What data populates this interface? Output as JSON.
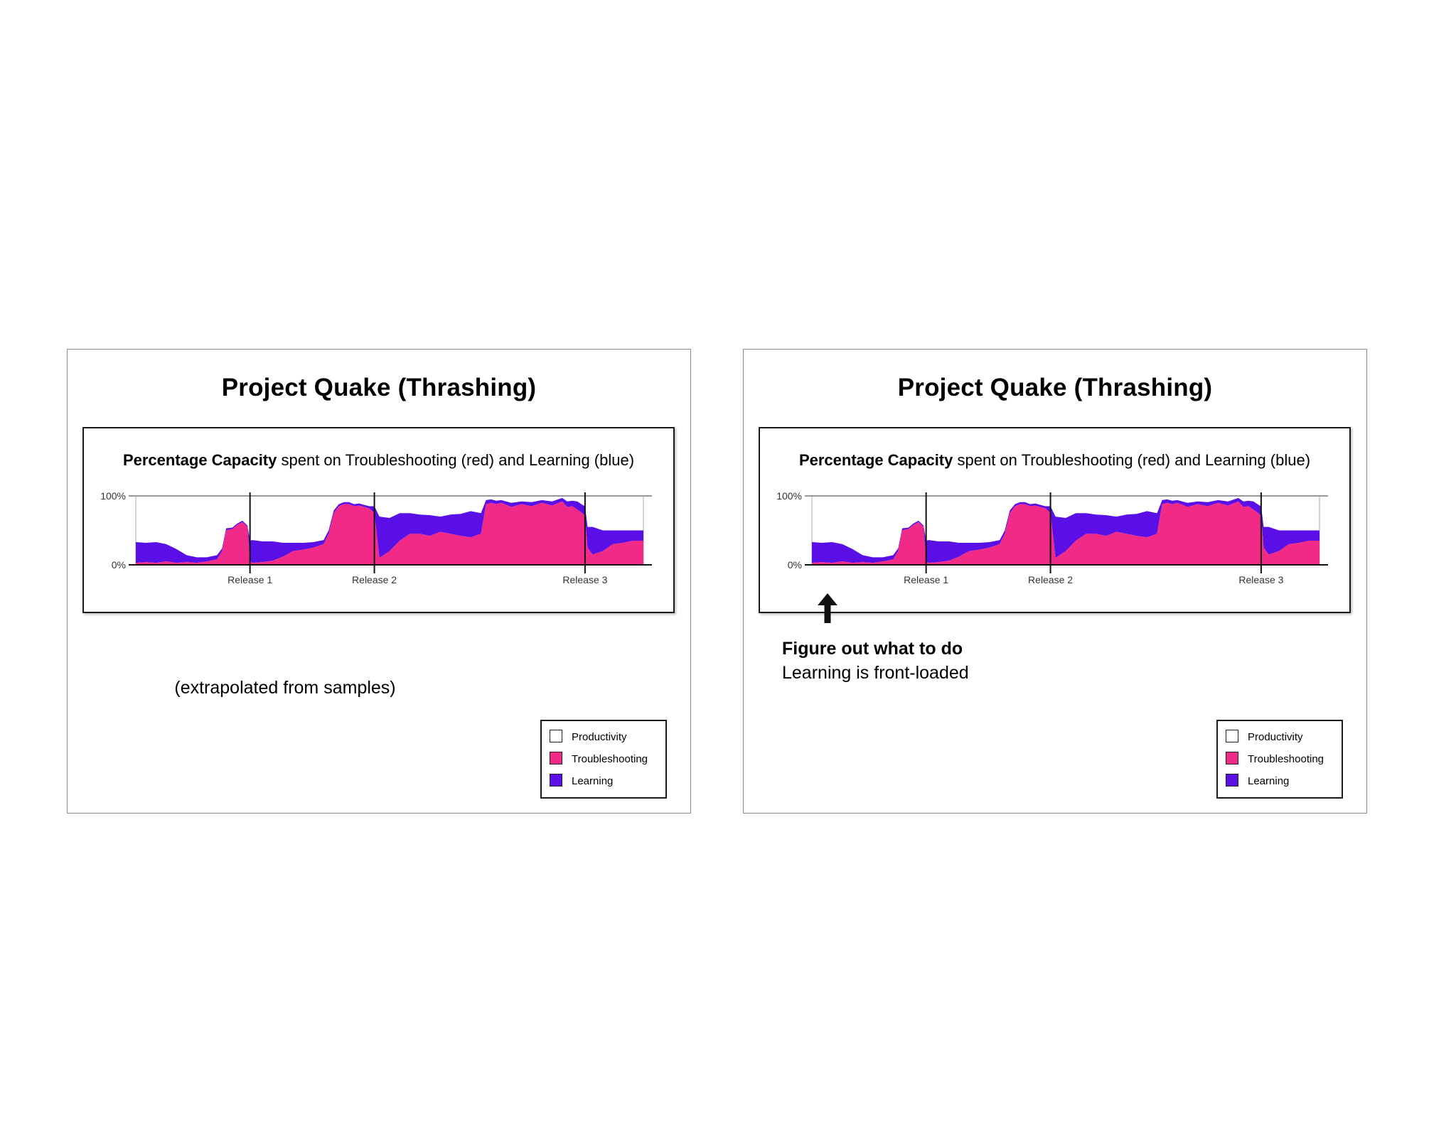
{
  "slides": [
    {
      "title": "Project Quake (Thrashing)",
      "chart_heading_bold": "Percentage Capacity",
      "chart_heading_rest": " spent on Troubleshooting (red) and Learning (blue)",
      "caption": "(extrapolated from samples)"
    },
    {
      "title": "Project Quake (Thrashing)",
      "chart_heading_bold": "Percentage Capacity",
      "chart_heading_rest": " spent on Troubleshooting (red) and Learning (blue)",
      "note_title": "Figure out what to do",
      "note_subtitle": "Learning is front-loaded",
      "arrow_icon": "up-arrow-icon"
    }
  ],
  "legend": [
    {
      "label": "Productivity",
      "color": "#ffffff"
    },
    {
      "label": "Troubleshooting",
      "color": "#f02a86"
    },
    {
      "label": "Learning",
      "color": "#5a0fe6"
    }
  ],
  "chart_data": {
    "type": "area",
    "stacked": true,
    "ylabel": "",
    "xlabel": "",
    "ylim": [
      0,
      100
    ],
    "xlim": [
      0,
      100
    ],
    "y_ticks": [
      "0%",
      "100%"
    ],
    "releases": [
      {
        "label": "Release 1",
        "x": 22.5
      },
      {
        "label": "Release 2",
        "x": 47
      },
      {
        "label": "Release 3",
        "x": 88.5
      }
    ],
    "x": [
      0,
      2,
      4,
      6,
      8,
      10,
      12,
      14,
      16,
      17,
      17.8,
      19,
      20,
      21,
      22,
      22.5,
      23,
      25,
      27,
      29,
      31,
      33,
      35,
      37,
      38,
      39,
      40,
      41,
      42,
      43,
      44,
      45,
      46,
      47,
      48,
      50,
      52,
      54,
      56,
      58,
      60,
      62,
      64,
      66,
      68,
      69,
      70,
      71,
      72,
      74,
      76,
      78,
      80,
      82,
      84,
      85,
      86,
      87,
      88,
      88.5,
      89,
      90,
      92,
      94,
      96,
      98,
      100
    ],
    "series": [
      {
        "name": "Troubleshooting",
        "color": "#f02a86",
        "values": [
          3,
          4,
          3,
          5,
          3,
          4,
          3,
          5,
          8,
          20,
          50,
          52,
          58,
          62,
          55,
          5,
          3,
          4,
          6,
          12,
          20,
          22,
          25,
          30,
          45,
          75,
          85,
          88,
          88,
          85,
          86,
          84,
          82,
          75,
          10,
          20,
          35,
          45,
          45,
          42,
          48,
          45,
          42,
          40,
          45,
          88,
          90,
          88,
          90,
          84,
          88,
          85,
          90,
          86,
          92,
          84,
          85,
          80,
          75,
          70,
          25,
          15,
          20,
          30,
          32,
          35,
          35
        ]
      },
      {
        "name": "Learning",
        "color": "#5a0fe6",
        "values": [
          30,
          28,
          30,
          25,
          20,
          10,
          8,
          6,
          6,
          4,
          3,
          2,
          2,
          2,
          2,
          30,
          33,
          30,
          28,
          20,
          12,
          10,
          8,
          6,
          5,
          4,
          3,
          3,
          3,
          3,
          3,
          3,
          3,
          10,
          60,
          48,
          40,
          30,
          28,
          30,
          22,
          28,
          32,
          38,
          30,
          6,
          5,
          5,
          4,
          6,
          4,
          6,
          4,
          6,
          5,
          8,
          8,
          12,
          12,
          15,
          30,
          40,
          30,
          20,
          18,
          15,
          15
        ]
      }
    ]
  }
}
